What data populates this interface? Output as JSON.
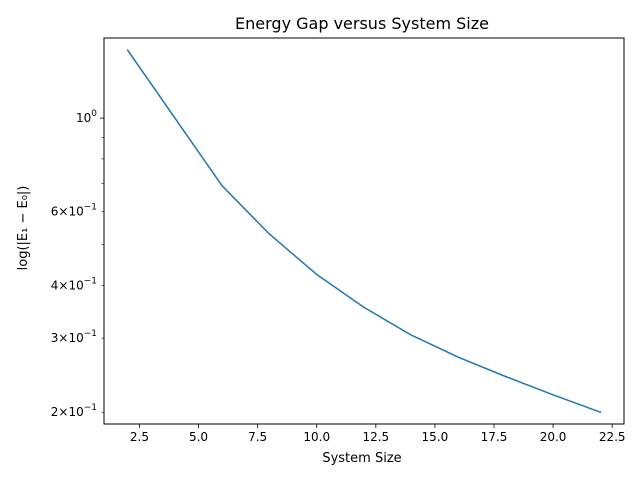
{
  "chart_data": {
    "type": "line",
    "title": "Energy Gap versus System Size",
    "xlabel": "System Size",
    "ylabel": "log(|E₁ − E₀|)",
    "xlim": [
      1.0,
      23.0
    ],
    "ylim": [
      0.1875,
      1.55
    ],
    "yscale": "log",
    "grid": false,
    "x_ticks": [
      2.5,
      5.0,
      7.5,
      10.0,
      12.5,
      15.0,
      17.5,
      20.0,
      22.5
    ],
    "x_tick_labels": [
      "2.5",
      "5.0",
      "7.5",
      "10.0",
      "12.5",
      "15.0",
      "17.5",
      "20.0",
      "22.5"
    ],
    "y_major_ticks": [
      1.0
    ],
    "y_labeled_ticks": [
      {
        "value": 1.0,
        "mantissa": "",
        "exponent": "0",
        "base": "10"
      },
      {
        "value": 0.6,
        "mantissa": "6×",
        "exponent": "−1",
        "base": "10"
      },
      {
        "value": 0.4,
        "mantissa": "4×",
        "exponent": "−1",
        "base": "10"
      },
      {
        "value": 0.3,
        "mantissa": "3×",
        "exponent": "−1",
        "base": "10"
      },
      {
        "value": 0.2,
        "mantissa": "2×",
        "exponent": "−1",
        "base": "10"
      }
    ],
    "y_minor_unlabeled": [
      0.5,
      0.7,
      0.8,
      0.9
    ],
    "series": [
      {
        "color": "#1f77b4",
        "x": [
          2,
          4,
          6,
          8,
          10,
          12,
          14,
          16,
          18,
          20,
          22
        ],
        "y": [
          1.45,
          1.0,
          0.69,
          0.53,
          0.425,
          0.355,
          0.305,
          0.27,
          0.243,
          0.22,
          0.2
        ]
      }
    ]
  }
}
